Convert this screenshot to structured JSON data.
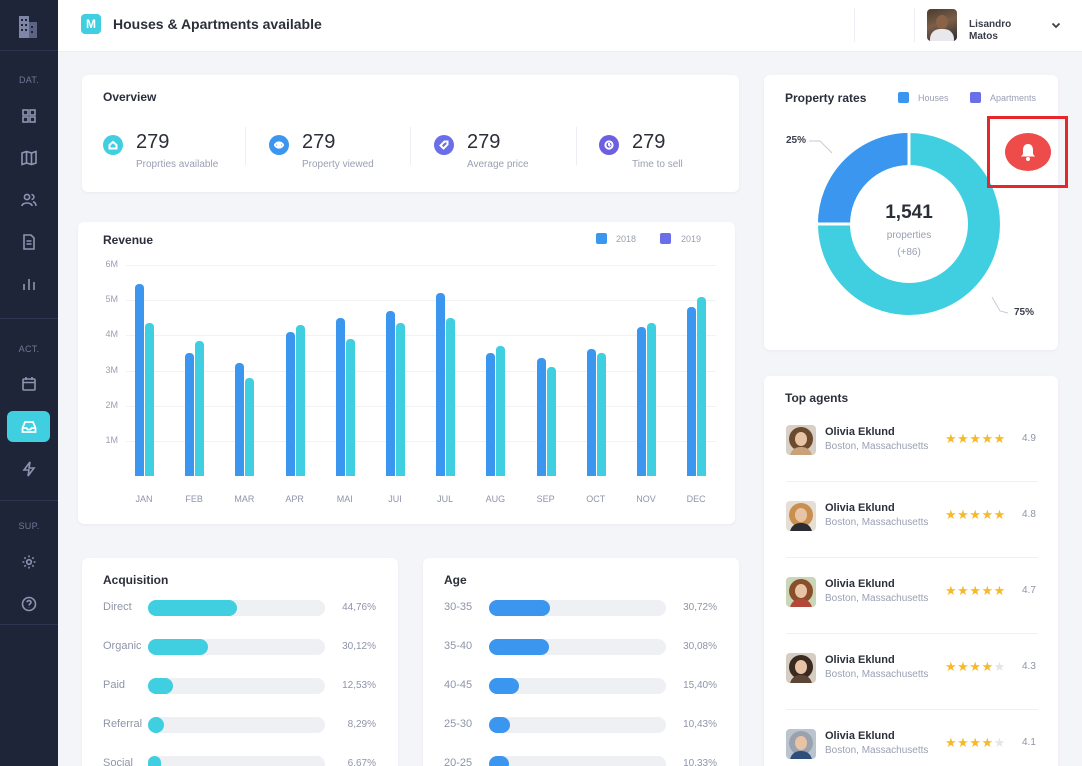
{
  "header": {
    "logo_letter": "M",
    "title": "Houses & Apartments available",
    "user_name": "Lisandro Matos"
  },
  "sidebar": {
    "sections": [
      "DAT.",
      "ACT.",
      "SUP."
    ],
    "icons": [
      "building-icon",
      "grid-icon",
      "map-icon",
      "users-icon",
      "document-icon",
      "bar-chart-icon",
      "calendar-icon",
      "inbox-icon",
      "bolt-icon",
      "settings-icon",
      "help-icon"
    ],
    "active": "inbox-icon"
  },
  "overview": {
    "title": "Overview",
    "items": [
      {
        "value": "279",
        "label": "Proprties available",
        "color": "#3fcfe0"
      },
      {
        "value": "279",
        "label": "Property viewed",
        "color": "#3b96ef"
      },
      {
        "value": "279",
        "label": "Average price",
        "color": "#6a6ee8"
      },
      {
        "value": "279",
        "label": "Time to sell",
        "color": "#6c5fe0"
      }
    ]
  },
  "revenue": {
    "title": "Revenue",
    "legend": [
      {
        "label": "2018",
        "color": "#3b96ef"
      },
      {
        "label": "2019",
        "color": "#6a6ee8"
      }
    ],
    "y_ticks": [
      "6M",
      "5M",
      "4M",
      "3M",
      "2M",
      "1M"
    ]
  },
  "chart_data": {
    "type": "bar",
    "title": "Revenue",
    "categories": [
      "JAN",
      "FEB",
      "MAR",
      "APR",
      "MAI",
      "JUI",
      "JUL",
      "AUG",
      "SEP",
      "OCT",
      "NOV",
      "DEC"
    ],
    "series": [
      {
        "name": "2018",
        "values": [
          5.45,
          3.5,
          3.2,
          4.1,
          4.5,
          4.7,
          5.2,
          3.5,
          3.35,
          3.6,
          4.25,
          4.8
        ]
      },
      {
        "name": "2019",
        "values": [
          4.35,
          3.85,
          2.8,
          4.3,
          3.9,
          4.35,
          4.5,
          3.7,
          3.1,
          3.5,
          4.35,
          5.1
        ]
      }
    ],
    "ylim": [
      0,
      6
    ],
    "y_unit": "M",
    "bar_colors": [
      "#3b96ef",
      "#3fcfe0"
    ],
    "grid": true,
    "legend_position": "top-right"
  },
  "acquisition": {
    "title": "Acquisition",
    "rows": [
      {
        "label": "Direct",
        "value": "44,76%",
        "fraction": 0.4476
      },
      {
        "label": "Organic",
        "value": "30,12%",
        "fraction": 0.3012
      },
      {
        "label": "Paid",
        "value": "12,53%",
        "fraction": 0.1253
      },
      {
        "label": "Referral",
        "value": "8,29%",
        "fraction": 0.0829
      },
      {
        "label": "Social",
        "value": "6,67%",
        "fraction": 0.0667
      }
    ]
  },
  "age": {
    "title": "Age",
    "rows": [
      {
        "label": "30-35",
        "value": "30,72%",
        "fraction": 0.3072
      },
      {
        "label": "35-40",
        "value": "30,08%",
        "fraction": 0.3008
      },
      {
        "label": "40-45",
        "value": "15,40%",
        "fraction": 0.154
      },
      {
        "label": "25-30",
        "value": "10,43%",
        "fraction": 0.1043
      },
      {
        "label": "20-25",
        "value": "10,33%",
        "fraction": 0.1033
      }
    ]
  },
  "property_rates": {
    "title": "Property rates",
    "legend": [
      {
        "label": "Houses",
        "color": "#3b96ef"
      },
      {
        "label": "Apartments",
        "color": "#6a6ee8"
      }
    ],
    "total": "1,541",
    "total_label": "properties",
    "delta": "(+86)",
    "houses_pct": "25%",
    "apartments_pct": "75%",
    "houses_fraction": 0.25,
    "colors": {
      "houses": "#3b96ef",
      "apartments": "#3fcfe0"
    }
  },
  "top_agents": {
    "title": "Top agents",
    "agents": [
      {
        "name": "Olivia Eklund",
        "location": "Boston, Massachusetts",
        "rating": "4.9",
        "stars": 5
      },
      {
        "name": "Olivia Eklund",
        "location": "Boston, Massachusetts",
        "rating": "4.8",
        "stars": 5
      },
      {
        "name": "Olivia Eklund",
        "location": "Boston, Massachusetts",
        "rating": "4.7",
        "stars": 5
      },
      {
        "name": "Olivia Eklund",
        "location": "Boston, Massachusetts",
        "rating": "4.3",
        "stars": 4
      },
      {
        "name": "Olivia Eklund",
        "location": "Boston, Massachusetts",
        "rating": "4.1",
        "stars": 4
      }
    ]
  },
  "notification": {
    "icon": "bell-icon",
    "color": "#ee4b4b"
  }
}
